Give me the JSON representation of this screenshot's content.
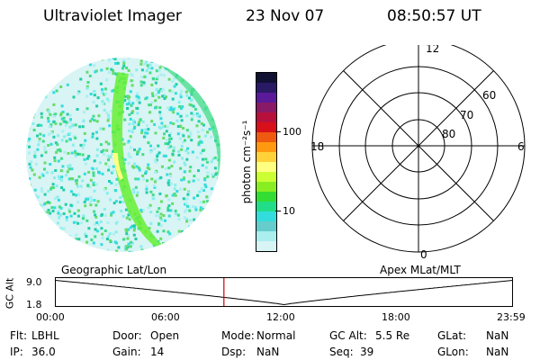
{
  "header": {
    "title": "Ultraviolet Imager",
    "date": "23 Nov 07",
    "time": "08:50:57 UT"
  },
  "colorbar": {
    "unit_label": "photon cm⁻²s⁻¹",
    "tick_labels": [
      "100",
      "10"
    ],
    "colors": [
      "#111133",
      "#2a1a66",
      "#5a1a99",
      "#8a1a66",
      "#b8103c",
      "#d8101a",
      "#ee5a10",
      "#ff9a10",
      "#ffd23a",
      "#ffff80",
      "#ccff33",
      "#88ee22",
      "#33dd33",
      "#22dd88",
      "#33dddd",
      "#66cccc",
      "#aaeeee",
      "#d8f4f4"
    ]
  },
  "polar": {
    "mlt_labels": {
      "top": "12",
      "bottom": "0",
      "left": "18",
      "right": "6"
    },
    "lat_labels": [
      "60",
      "70",
      "80"
    ]
  },
  "altplot": {
    "left_title": "Geographic Lat/Lon",
    "right_title": "Apex MLat/MLT",
    "ylabel": "GC Alt",
    "y_ticks": [
      "9.0",
      "1.8"
    ],
    "x_ticks": [
      "00:00",
      "06:00",
      "12:00",
      "18:00",
      "23:59"
    ],
    "current_time_fraction": 0.3687
  },
  "status": {
    "row1": [
      {
        "key": "Flt:",
        "val": "LBHL"
      },
      {
        "key": "Door:",
        "val": "Open"
      },
      {
        "key": "Mode:",
        "val": "Normal"
      },
      {
        "key": "GC Alt:",
        "val": "5.5 Re"
      },
      {
        "key": "GLat:",
        "val": "NaN"
      }
    ],
    "row2": [
      {
        "key": "IP:",
        "val": "36.0"
      },
      {
        "key": "Gain:",
        "val": "14"
      },
      {
        "key": "Dsp:",
        "val": "NaN"
      },
      {
        "key": "Seq:",
        "val": "39"
      },
      {
        "key": "GLon:",
        "val": "NaN"
      }
    ]
  }
}
